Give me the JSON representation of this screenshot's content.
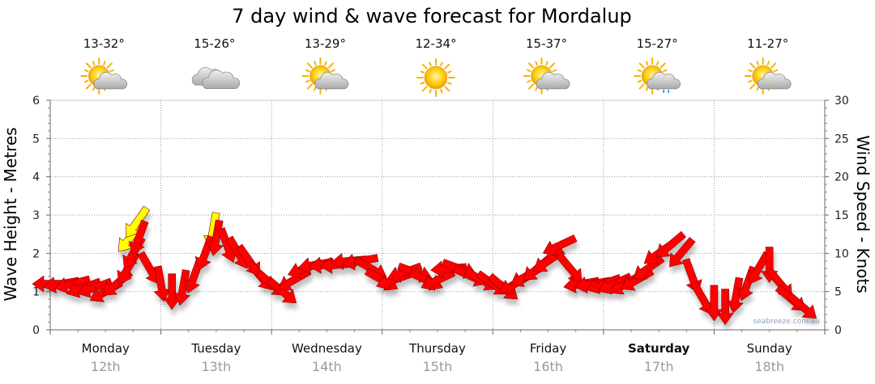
{
  "chart_data": {
    "type": "line",
    "title": "7 day wind & wave forecast for Mordalup",
    "y_left_label": "Wave Height - Metres",
    "y_right_label": "Wind Speed - Knots",
    "y_left_range": [
      0,
      6
    ],
    "y_left_ticks": [
      "0",
      "1",
      "2",
      "3",
      "4",
      "5",
      "6"
    ],
    "y_right_range": [
      0,
      30
    ],
    "y_right_ticks": [
      "0",
      "5",
      "10",
      "15",
      "20",
      "25",
      "30"
    ],
    "grid": true,
    "watermark": "seabreeze.com.au",
    "days": [
      {
        "name": "Monday",
        "date": "12th",
        "temp": "13-32°",
        "weather": "sun-cloud-icon",
        "weekend": false
      },
      {
        "name": "Tuesday",
        "date": "13th",
        "temp": "15-26°",
        "weather": "cloud-icon",
        "weekend": false
      },
      {
        "name": "Wednesday",
        "date": "14th",
        "temp": "13-29°",
        "weather": "sun-cloud-icon",
        "weekend": false
      },
      {
        "name": "Thursday",
        "date": "15th",
        "temp": "12-34°",
        "weather": "sun-icon",
        "weekend": false
      },
      {
        "name": "Friday",
        "date": "16th",
        "temp": "15-37°",
        "weather": "sun-cloud-icon",
        "weekend": false
      },
      {
        "name": "Saturday",
        "date": "17th",
        "temp": "15-27°",
        "weather": "sun-cloud-rain-icon",
        "weekend": true
      },
      {
        "name": "Sunday",
        "date": "18th",
        "temp": "11-27°",
        "weather": "sun-cloud-icon",
        "weekend": false
      }
    ],
    "wind_series": {
      "name": "Wind",
      "units": "knots",
      "color": "#ff0000",
      "gust_color": "#ffff00",
      "points": [
        {
          "t": 0.0,
          "speed": 6.0,
          "dir": 270
        },
        {
          "t": 0.1,
          "speed": 6.0,
          "dir": 260
        },
        {
          "t": 0.2,
          "speed": 6.0,
          "dir": 255
        },
        {
          "t": 0.3,
          "speed": 5.5,
          "dir": 250
        },
        {
          "t": 0.4,
          "speed": 5.5,
          "dir": 250
        },
        {
          "t": 0.5,
          "speed": 5.0,
          "dir": 240
        },
        {
          "t": 0.6,
          "speed": 6.0,
          "dir": 230
        },
        {
          "t": 0.7,
          "speed": 8.0,
          "dir": 210
        },
        {
          "t": 0.75,
          "speed": 10.0,
          "dir": 210
        },
        {
          "t": 0.8,
          "speed": 12.0,
          "dir": 200
        },
        {
          "t": 0.9,
          "speed": 8.0,
          "dir": 150
        },
        {
          "t": 1.0,
          "speed": 6.0,
          "dir": 170
        },
        {
          "t": 1.1,
          "speed": 5.0,
          "dir": 180
        },
        {
          "t": 1.2,
          "speed": 5.5,
          "dir": 190
        },
        {
          "t": 1.3,
          "speed": 7.0,
          "dir": 200
        },
        {
          "t": 1.4,
          "speed": 10.0,
          "dir": 200
        },
        {
          "t": 1.5,
          "speed": 12.0,
          "dir": 190
        },
        {
          "t": 1.6,
          "speed": 11.0,
          "dir": 160
        },
        {
          "t": 1.7,
          "speed": 10.0,
          "dir": 150
        },
        {
          "t": 1.8,
          "speed": 9.0,
          "dir": 145
        },
        {
          "t": 1.9,
          "speed": 7.0,
          "dir": 140
        },
        {
          "t": 2.0,
          "speed": 6.0,
          "dir": 130
        },
        {
          "t": 2.1,
          "speed": 5.0,
          "dir": 130
        },
        {
          "t": 2.2,
          "speed": 6.5,
          "dir": 240
        },
        {
          "t": 2.3,
          "speed": 8.0,
          "dir": 250
        },
        {
          "t": 2.4,
          "speed": 8.5,
          "dir": 260
        },
        {
          "t": 2.5,
          "speed": 8.5,
          "dir": 265
        },
        {
          "t": 2.6,
          "speed": 8.5,
          "dir": 265
        },
        {
          "t": 2.7,
          "speed": 9.0,
          "dir": 265
        },
        {
          "t": 2.8,
          "speed": 9.0,
          "dir": 260
        },
        {
          "t": 2.9,
          "speed": 8.0,
          "dir": 120
        },
        {
          "t": 3.0,
          "speed": 6.5,
          "dir": 120
        },
        {
          "t": 3.1,
          "speed": 6.5,
          "dir": 250
        },
        {
          "t": 3.2,
          "speed": 7.5,
          "dir": 250
        },
        {
          "t": 3.3,
          "speed": 7.5,
          "dir": 110
        },
        {
          "t": 3.4,
          "speed": 6.5,
          "dir": 115
        },
        {
          "t": 3.5,
          "speed": 6.5,
          "dir": 245
        },
        {
          "t": 3.6,
          "speed": 8.0,
          "dir": 265
        },
        {
          "t": 3.7,
          "speed": 8.0,
          "dir": 110
        },
        {
          "t": 3.8,
          "speed": 7.0,
          "dir": 115
        },
        {
          "t": 3.9,
          "speed": 6.5,
          "dir": 120
        },
        {
          "t": 4.0,
          "speed": 6.0,
          "dir": 125
        },
        {
          "t": 4.1,
          "speed": 5.5,
          "dir": 130
        },
        {
          "t": 4.2,
          "speed": 6.0,
          "dir": 240
        },
        {
          "t": 4.3,
          "speed": 7.0,
          "dir": 240
        },
        {
          "t": 4.4,
          "speed": 8.0,
          "dir": 230
        },
        {
          "t": 4.5,
          "speed": 9.0,
          "dir": 235
        },
        {
          "t": 4.6,
          "speed": 11.0,
          "dir": 245
        },
        {
          "t": 4.7,
          "speed": 8.0,
          "dir": 140
        },
        {
          "t": 4.8,
          "speed": 6.0,
          "dir": 260
        },
        {
          "t": 4.9,
          "speed": 6.0,
          "dir": 260
        },
        {
          "t": 5.0,
          "speed": 6.0,
          "dir": 250
        },
        {
          "t": 5.1,
          "speed": 6.0,
          "dir": 245
        },
        {
          "t": 5.2,
          "speed": 6.0,
          "dir": 240
        },
        {
          "t": 5.3,
          "speed": 6.5,
          "dir": 240
        },
        {
          "t": 5.4,
          "speed": 8.0,
          "dir": 235
        },
        {
          "t": 5.5,
          "speed": 10.0,
          "dir": 235
        },
        {
          "t": 5.6,
          "speed": 11.0,
          "dir": 230
        },
        {
          "t": 5.7,
          "speed": 10.0,
          "dir": 220
        },
        {
          "t": 5.8,
          "speed": 7.0,
          "dir": 160
        },
        {
          "t": 5.9,
          "speed": 4.0,
          "dir": 150
        },
        {
          "t": 6.0,
          "speed": 3.5,
          "dir": 180
        },
        {
          "t": 6.1,
          "speed": 3.0,
          "dir": 180
        },
        {
          "t": 6.2,
          "speed": 4.5,
          "dir": 190
        },
        {
          "t": 6.3,
          "speed": 6.0,
          "dir": 200
        },
        {
          "t": 6.4,
          "speed": 8.0,
          "dir": 210
        },
        {
          "t": 6.5,
          "speed": 8.5,
          "dir": 180
        },
        {
          "t": 6.6,
          "speed": 6.0,
          "dir": 140
        },
        {
          "t": 6.7,
          "speed": 4.0,
          "dir": 130
        },
        {
          "t": 6.8,
          "speed": 3.0,
          "dir": 130
        }
      ],
      "gusts": [
        {
          "t": 0.72,
          "speed": 12.0,
          "dir": 220
        },
        {
          "t": 0.78,
          "speed": 14.0,
          "dir": 215
        },
        {
          "t": 1.47,
          "speed": 13.0,
          "dir": 190
        }
      ]
    }
  }
}
